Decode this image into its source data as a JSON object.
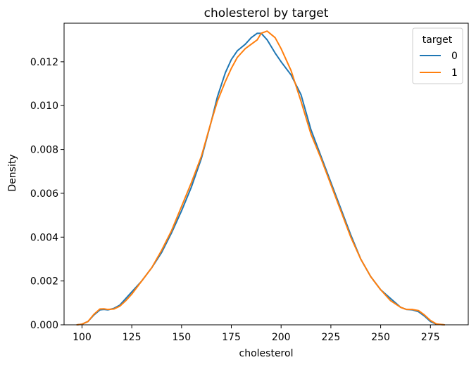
{
  "chart_data": {
    "type": "line",
    "title": "cholesterol by target",
    "xlabel": "cholesterol",
    "ylabel": "Density",
    "xlim": [
      91,
      294
    ],
    "ylim": [
      0,
      0.01376
    ],
    "grid": false,
    "legend": {
      "title": "target",
      "placement": "top-right",
      "entries": [
        "0",
        "1"
      ]
    },
    "x_ticks": [
      {
        "value": 100,
        "label": "100"
      },
      {
        "value": 125,
        "label": "125"
      },
      {
        "value": 150,
        "label": "150"
      },
      {
        "value": 175,
        "label": "175"
      },
      {
        "value": 200,
        "label": "200"
      },
      {
        "value": 225,
        "label": "225"
      },
      {
        "value": 250,
        "label": "250"
      },
      {
        "value": 275,
        "label": "275"
      }
    ],
    "y_ticks": [
      {
        "value": 0.0,
        "label": "0.000"
      },
      {
        "value": 0.002,
        "label": "0.002"
      },
      {
        "value": 0.004,
        "label": "0.004"
      },
      {
        "value": 0.006,
        "label": "0.006"
      },
      {
        "value": 0.008,
        "label": "0.008"
      },
      {
        "value": 0.01,
        "label": "0.010"
      },
      {
        "value": 0.012,
        "label": "0.012"
      }
    ],
    "series": [
      {
        "name": "0",
        "color": "#1f77b4",
        "x": [
          97.5,
          100,
          103,
          106,
          109,
          111,
          113,
          116,
          119,
          122,
          125,
          130,
          135,
          140,
          145,
          150,
          155,
          160,
          165,
          168,
          172,
          175,
          178,
          182,
          185,
          188,
          190,
          193,
          197,
          200,
          205,
          210,
          215,
          220,
          225,
          230,
          235,
          240,
          245,
          250,
          255,
          260,
          263,
          266,
          269,
          272,
          275,
          278,
          282
        ],
        "y": [
          0.0,
          3e-05,
          0.00015,
          0.00045,
          0.00068,
          0.0007,
          0.00068,
          0.00075,
          0.0009,
          0.0012,
          0.0015,
          0.002,
          0.0026,
          0.0033,
          0.0042,
          0.0052,
          0.0063,
          0.0076,
          0.0093,
          0.0104,
          0.0115,
          0.0121,
          0.0125,
          0.0128,
          0.0131,
          0.0133,
          0.0133,
          0.013,
          0.0124,
          0.012,
          0.0114,
          0.0105,
          0.0089,
          0.0077,
          0.0065,
          0.0053,
          0.0041,
          0.003,
          0.0022,
          0.0016,
          0.0012,
          0.0008,
          0.0007,
          0.00068,
          0.0006,
          0.0004,
          0.00015,
          3e-05,
          0.0
        ]
      },
      {
        "name": "1",
        "color": "#ff7f0e",
        "x": [
          97.5,
          100,
          103,
          106,
          109,
          111,
          113,
          116,
          119,
          122,
          125,
          130,
          135,
          140,
          145,
          150,
          155,
          160,
          165,
          168,
          172,
          175,
          178,
          182,
          185,
          188,
          190,
          193,
          197,
          200,
          205,
          210,
          215,
          220,
          225,
          230,
          235,
          240,
          245,
          250,
          255,
          260,
          263,
          266,
          269,
          272,
          275,
          278,
          282
        ],
        "y": [
          0.0,
          3e-05,
          0.00015,
          0.00048,
          0.00072,
          0.00073,
          0.0007,
          0.00072,
          0.00085,
          0.0011,
          0.0014,
          0.002,
          0.0026,
          0.0034,
          0.0043,
          0.0054,
          0.0065,
          0.0077,
          0.0093,
          0.0102,
          0.0111,
          0.0117,
          0.0122,
          0.0126,
          0.0128,
          0.013,
          0.0133,
          0.0134,
          0.0131,
          0.0126,
          0.0116,
          0.0102,
          0.0087,
          0.0076,
          0.0064,
          0.0052,
          0.004,
          0.003,
          0.0022,
          0.0016,
          0.0011,
          0.0008,
          0.0007,
          0.0007,
          0.00065,
          0.00045,
          0.0002,
          4e-05,
          0.0
        ]
      }
    ]
  }
}
